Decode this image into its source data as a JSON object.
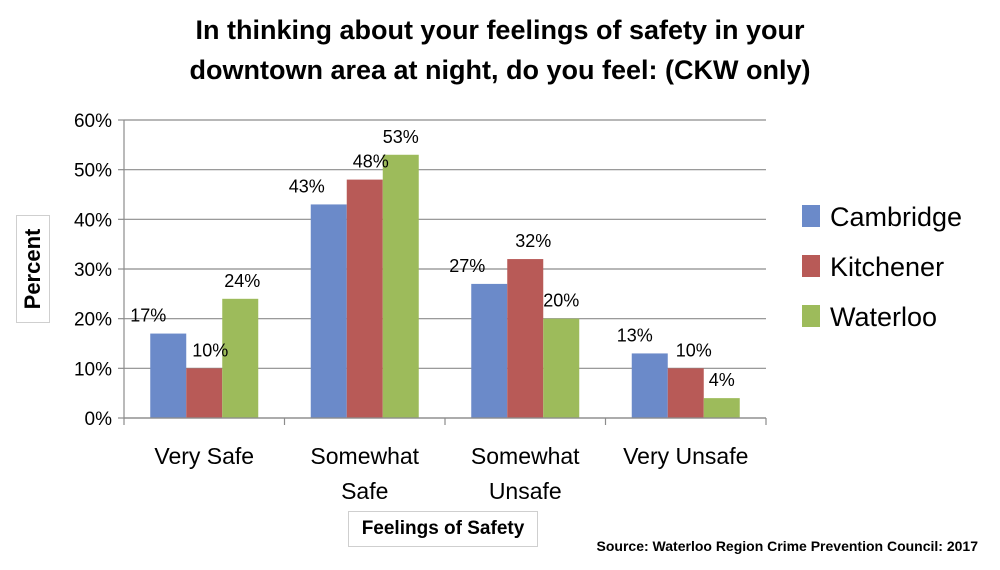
{
  "chart_data": {
    "type": "bar",
    "title_lines": [
      "In thinking about your feelings of safety in your",
      "downtown area at night, do you feel:  (CKW only)"
    ],
    "xlabel": "Feelings of Safety",
    "ylabel": "Percent",
    "categories": [
      [
        "Very Safe"
      ],
      [
        "Somewhat",
        "Safe"
      ],
      [
        "Somewhat",
        "Unsafe"
      ],
      [
        "Very Unsafe"
      ]
    ],
    "series": [
      {
        "name": "Cambridge",
        "color": "#6b8ac9",
        "values": [
          17,
          43,
          27,
          13
        ]
      },
      {
        "name": "Kitchener",
        "color": "#b85a57",
        "values": [
          10,
          48,
          32,
          10
        ]
      },
      {
        "name": "Waterloo",
        "color": "#9dbb5b",
        "values": [
          24,
          53,
          20,
          4
        ]
      }
    ],
    "ylim": [
      0,
      60
    ],
    "yticks": [
      0,
      10,
      20,
      30,
      40,
      50,
      60
    ],
    "ytick_labels": [
      "0%",
      "10%",
      "20%",
      "30%",
      "40%",
      "50%",
      "60%"
    ],
    "data_labels": [
      [
        "17%",
        "43%",
        "27%",
        "13%"
      ],
      [
        "10%",
        "48%",
        "32%",
        "10%"
      ],
      [
        "24%",
        "53%",
        "20%",
        "4%"
      ]
    ],
    "grid": true,
    "legend_position": "right"
  },
  "source": "Source: Waterloo Region Crime Prevention Council: 2017"
}
